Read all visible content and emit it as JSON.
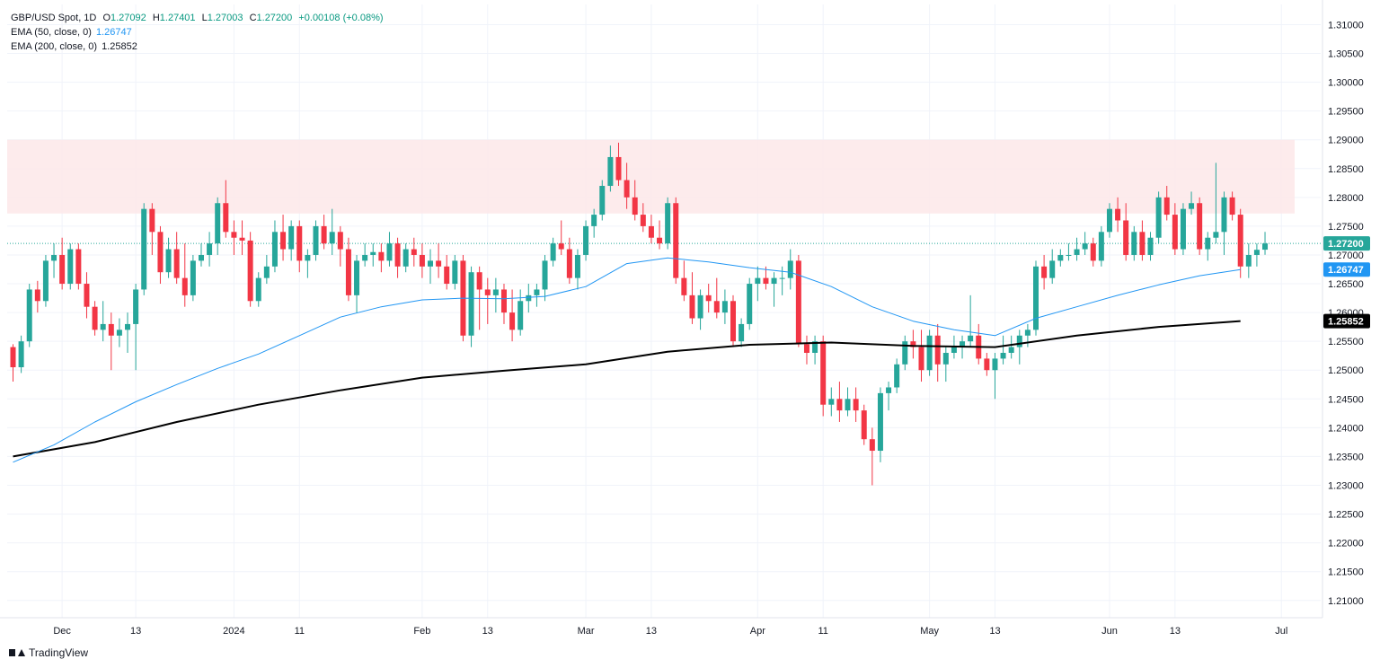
{
  "legend": {
    "symbol": "GBP/USD Spot, 1D",
    "o_label": "O",
    "o": "1.27092",
    "h_label": "H",
    "h": "1.27401",
    "l_label": "L",
    "l": "1.27003",
    "c_label": "C",
    "c": "1.27200",
    "change": "+0.00108 (+0.08%)",
    "ema50_label": "EMA (50, close, 0)",
    "ema50": "1.26747",
    "ema200_label": "EMA (200, close, 0)",
    "ema200": "1.25852"
  },
  "branding": {
    "name": "TradingView"
  },
  "colors": {
    "up": "#26a69a",
    "down": "#f23645",
    "ema50": "#2196f3",
    "ema200": "#000000",
    "zone": "#fde7e9"
  },
  "chart_data": {
    "type": "candlestick",
    "title": "GBP/USD Spot, 1D",
    "y_range": [
      1.207,
      1.3135
    ],
    "y_ticks": [
      "1.31000",
      "1.30500",
      "1.30000",
      "1.29500",
      "1.29000",
      "1.28500",
      "1.28000",
      "1.27500",
      "1.27000",
      "1.26500",
      "1.26000",
      "1.25500",
      "1.25000",
      "1.24500",
      "1.24000",
      "1.23500",
      "1.23000",
      "1.22500",
      "1.22000",
      "1.21500",
      "1.21000"
    ],
    "x_ticks": [
      {
        "label": "Dec",
        "bar": 6
      },
      {
        "label": "13",
        "bar": 15
      },
      {
        "label": "2024",
        "bar": 27
      },
      {
        "label": "11",
        "bar": 35
      },
      {
        "label": "Feb",
        "bar": 50
      },
      {
        "label": "13",
        "bar": 58
      },
      {
        "label": "Mar",
        "bar": 70
      },
      {
        "label": "13",
        "bar": 78
      },
      {
        "label": "Apr",
        "bar": 91
      },
      {
        "label": "11",
        "bar": 99
      },
      {
        "label": "May",
        "bar": 112
      },
      {
        "label": "13",
        "bar": 120
      },
      {
        "label": "Jun",
        "bar": 134
      },
      {
        "label": "13",
        "bar": 142
      },
      {
        "label": "Jul",
        "bar": 155
      }
    ],
    "resistance_zone": [
      1.2772,
      1.29
    ],
    "current_price": "1.27200",
    "ema50_value": "1.26747",
    "ema200_value": "1.25852",
    "candles": [
      [
        1.254,
        1.2545,
        1.248,
        1.2505
      ],
      [
        1.2505,
        1.256,
        1.2495,
        1.255
      ],
      [
        1.255,
        1.265,
        1.254,
        1.264
      ],
      [
        1.264,
        1.2655,
        1.26,
        1.262
      ],
      [
        1.262,
        1.27,
        1.261,
        1.269
      ],
      [
        1.269,
        1.272,
        1.266,
        1.27
      ],
      [
        1.27,
        1.273,
        1.264,
        1.265
      ],
      [
        1.265,
        1.272,
        1.264,
        1.271
      ],
      [
        1.271,
        1.272,
        1.264,
        1.265
      ],
      [
        1.265,
        1.267,
        1.259,
        1.261
      ],
      [
        1.261,
        1.262,
        1.256,
        1.257
      ],
      [
        1.257,
        1.262,
        1.255,
        1.258
      ],
      [
        1.258,
        1.26,
        1.25,
        1.256
      ],
      [
        1.256,
        1.259,
        1.254,
        1.257
      ],
      [
        1.257,
        1.26,
        1.253,
        1.258
      ],
      [
        1.258,
        1.265,
        1.25,
        1.264
      ],
      [
        1.264,
        1.279,
        1.263,
        1.278
      ],
      [
        1.278,
        1.279,
        1.27,
        1.274
      ],
      [
        1.274,
        1.275,
        1.265,
        1.267
      ],
      [
        1.267,
        1.273,
        1.266,
        1.271
      ],
      [
        1.271,
        1.274,
        1.265,
        1.266
      ],
      [
        1.266,
        1.272,
        1.261,
        1.263
      ],
      [
        1.263,
        1.27,
        1.262,
        1.269
      ],
      [
        1.269,
        1.272,
        1.268,
        1.27
      ],
      [
        1.27,
        1.274,
        1.268,
        1.272
      ],
      [
        1.272,
        1.28,
        1.27,
        1.279
      ],
      [
        1.279,
        1.283,
        1.273,
        1.274
      ],
      [
        1.274,
        1.276,
        1.27,
        1.273
      ],
      [
        1.273,
        1.276,
        1.27,
        1.2725
      ],
      [
        1.2725,
        1.274,
        1.261,
        1.262
      ],
      [
        1.262,
        1.267,
        1.261,
        1.266
      ],
      [
        1.266,
        1.27,
        1.265,
        1.268
      ],
      [
        1.268,
        1.276,
        1.267,
        1.274
      ],
      [
        1.274,
        1.277,
        1.269,
        1.271
      ],
      [
        1.271,
        1.276,
        1.269,
        1.275
      ],
      [
        1.275,
        1.276,
        1.267,
        1.269
      ],
      [
        1.269,
        1.271,
        1.266,
        1.27
      ],
      [
        1.27,
        1.276,
        1.269,
        1.275
      ],
      [
        1.275,
        1.277,
        1.271,
        1.272
      ],
      [
        1.272,
        1.278,
        1.27,
        1.274
      ],
      [
        1.274,
        1.275,
        1.268,
        1.271
      ],
      [
        1.271,
        1.273,
        1.262,
        1.263
      ],
      [
        1.263,
        1.27,
        1.26,
        1.269
      ],
      [
        1.269,
        1.272,
        1.268,
        1.27
      ],
      [
        1.27,
        1.272,
        1.268,
        1.2705
      ],
      [
        1.2705,
        1.272,
        1.267,
        1.269
      ],
      [
        1.269,
        1.274,
        1.268,
        1.272
      ],
      [
        1.272,
        1.273,
        1.266,
        1.268
      ],
      [
        1.268,
        1.272,
        1.267,
        1.271
      ],
      [
        1.271,
        1.273,
        1.268,
        1.27
      ],
      [
        1.27,
        1.272,
        1.266,
        1.268
      ],
      [
        1.268,
        1.271,
        1.265,
        1.269
      ],
      [
        1.269,
        1.272,
        1.266,
        1.268
      ],
      [
        1.268,
        1.27,
        1.264,
        1.265
      ],
      [
        1.265,
        1.27,
        1.264,
        1.269
      ],
      [
        1.269,
        1.27,
        1.255,
        1.256
      ],
      [
        1.256,
        1.268,
        1.254,
        1.267
      ],
      [
        1.267,
        1.268,
        1.257,
        1.264
      ],
      [
        1.264,
        1.266,
        1.258,
        1.263
      ],
      [
        1.263,
        1.266,
        1.26,
        1.264
      ],
      [
        1.264,
        1.265,
        1.258,
        1.26
      ],
      [
        1.26,
        1.264,
        1.255,
        1.257
      ],
      [
        1.257,
        1.264,
        1.256,
        1.262
      ],
      [
        1.262,
        1.265,
        1.26,
        1.263
      ],
      [
        1.263,
        1.265,
        1.261,
        1.264
      ],
      [
        1.264,
        1.27,
        1.262,
        1.269
      ],
      [
        1.269,
        1.273,
        1.268,
        1.272
      ],
      [
        1.272,
        1.276,
        1.27,
        1.271
      ],
      [
        1.271,
        1.273,
        1.265,
        1.266
      ],
      [
        1.266,
        1.271,
        1.264,
        1.27
      ],
      [
        1.27,
        1.276,
        1.269,
        1.275
      ],
      [
        1.275,
        1.278,
        1.273,
        1.277
      ],
      [
        1.277,
        1.283,
        1.276,
        1.282
      ],
      [
        1.282,
        1.289,
        1.281,
        1.287
      ],
      [
        1.287,
        1.2895,
        1.282,
        1.283
      ],
      [
        1.283,
        1.286,
        1.278,
        1.28
      ],
      [
        1.28,
        1.283,
        1.276,
        1.277
      ],
      [
        1.277,
        1.279,
        1.274,
        1.275
      ],
      [
        1.275,
        1.277,
        1.272,
        1.273
      ],
      [
        1.273,
        1.276,
        1.271,
        1.272
      ],
      [
        1.272,
        1.28,
        1.271,
        1.279
      ],
      [
        1.279,
        1.28,
        1.265,
        1.266
      ],
      [
        1.266,
        1.269,
        1.262,
        1.263
      ],
      [
        1.263,
        1.267,
        1.258,
        1.259
      ],
      [
        1.259,
        1.264,
        1.257,
        1.263
      ],
      [
        1.263,
        1.265,
        1.26,
        1.262
      ],
      [
        1.262,
        1.266,
        1.259,
        1.26
      ],
      [
        1.26,
        1.264,
        1.258,
        1.262
      ],
      [
        1.262,
        1.263,
        1.254,
        1.255
      ],
      [
        1.255,
        1.259,
        1.254,
        1.258
      ],
      [
        1.258,
        1.266,
        1.257,
        1.265
      ],
      [
        1.265,
        1.268,
        1.262,
        1.266
      ],
      [
        1.266,
        1.268,
        1.264,
        1.265
      ],
      [
        1.265,
        1.267,
        1.261,
        1.266
      ],
      [
        1.266,
        1.268,
        1.263,
        1.266
      ],
      [
        1.266,
        1.271,
        1.264,
        1.269
      ],
      [
        1.269,
        1.27,
        1.254,
        1.2545
      ],
      [
        1.2545,
        1.256,
        1.251,
        1.253
      ],
      [
        1.253,
        1.256,
        1.251,
        1.255
      ],
      [
        1.255,
        1.256,
        1.242,
        1.244
      ],
      [
        1.244,
        1.247,
        1.242,
        1.245
      ],
      [
        1.245,
        1.248,
        1.241,
        1.243
      ],
      [
        1.243,
        1.247,
        1.242,
        1.245
      ],
      [
        1.245,
        1.247,
        1.241,
        1.243
      ],
      [
        1.243,
        1.244,
        1.237,
        1.238
      ],
      [
        1.238,
        1.24,
        1.23,
        1.236
      ],
      [
        1.236,
        1.247,
        1.234,
        1.246
      ],
      [
        1.246,
        1.248,
        1.243,
        1.247
      ],
      [
        1.247,
        1.252,
        1.246,
        1.251
      ],
      [
        1.251,
        1.256,
        1.25,
        1.255
      ],
      [
        1.255,
        1.257,
        1.252,
        1.254
      ],
      [
        1.254,
        1.257,
        1.248,
        1.25
      ],
      [
        1.25,
        1.257,
        1.249,
        1.256
      ],
      [
        1.256,
        1.258,
        1.248,
        1.251
      ],
      [
        1.251,
        1.254,
        1.248,
        1.253
      ],
      [
        1.253,
        1.256,
        1.252,
        1.254
      ],
      [
        1.254,
        1.256,
        1.252,
        1.255
      ],
      [
        1.255,
        1.263,
        1.254,
        1.256
      ],
      [
        1.256,
        1.258,
        1.251,
        1.252
      ],
      [
        1.252,
        1.253,
        1.249,
        1.25
      ],
      [
        1.25,
        1.253,
        1.245,
        1.252
      ],
      [
        1.252,
        1.256,
        1.251,
        1.253
      ],
      [
        1.253,
        1.256,
        1.252,
        1.254
      ],
      [
        1.254,
        1.257,
        1.251,
        1.256
      ],
      [
        1.256,
        1.258,
        1.254,
        1.257
      ],
      [
        1.257,
        1.269,
        1.256,
        1.268
      ],
      [
        1.268,
        1.27,
        1.264,
        1.266
      ],
      [
        1.266,
        1.271,
        1.265,
        1.269
      ],
      [
        1.269,
        1.271,
        1.268,
        1.27
      ],
      [
        1.27,
        1.272,
        1.269,
        1.27
      ],
      [
        1.27,
        1.273,
        1.269,
        1.271
      ],
      [
        1.271,
        1.274,
        1.27,
        1.272
      ],
      [
        1.272,
        1.273,
        1.268,
        1.269
      ],
      [
        1.269,
        1.275,
        1.268,
        1.274
      ],
      [
        1.274,
        1.279,
        1.273,
        1.278
      ],
      [
        1.278,
        1.28,
        1.274,
        1.276
      ],
      [
        1.276,
        1.279,
        1.269,
        1.27
      ],
      [
        1.27,
        1.275,
        1.269,
        1.274
      ],
      [
        1.274,
        1.276,
        1.269,
        1.27
      ],
      [
        1.27,
        1.274,
        1.269,
        1.273
      ],
      [
        1.273,
        1.281,
        1.272,
        1.28
      ],
      [
        1.28,
        1.282,
        1.276,
        1.277
      ],
      [
        1.277,
        1.279,
        1.27,
        1.271
      ],
      [
        1.271,
        1.279,
        1.27,
        1.278
      ],
      [
        1.278,
        1.281,
        1.277,
        1.279
      ],
      [
        1.279,
        1.28,
        1.27,
        1.271
      ],
      [
        1.271,
        1.274,
        1.269,
        1.273
      ],
      [
        1.273,
        1.286,
        1.272,
        1.274
      ],
      [
        1.274,
        1.281,
        1.27,
        1.28
      ],
      [
        1.28,
        1.281,
        1.276,
        1.277
      ],
      [
        1.277,
        1.278,
        1.266,
        1.268
      ],
      [
        1.268,
        1.272,
        1.266,
        1.27
      ],
      [
        1.27,
        1.272,
        1.268,
        1.2709
      ],
      [
        1.27092,
        1.27401,
        1.27003,
        1.272
      ]
    ],
    "ema50": [
      [
        0,
        1.234
      ],
      [
        5,
        1.237
      ],
      [
        10,
        1.241
      ],
      [
        15,
        1.2445
      ],
      [
        20,
        1.2475
      ],
      [
        25,
        1.2503
      ],
      [
        30,
        1.2528
      ],
      [
        35,
        1.256
      ],
      [
        40,
        1.2592
      ],
      [
        45,
        1.261
      ],
      [
        50,
        1.2622
      ],
      [
        55,
        1.2625
      ],
      [
        60,
        1.2624
      ],
      [
        65,
        1.2628
      ],
      [
        70,
        1.2645
      ],
      [
        75,
        1.2685
      ],
      [
        80,
        1.2695
      ],
      [
        85,
        1.2688
      ],
      [
        90,
        1.2678
      ],
      [
        95,
        1.267
      ],
      [
        100,
        1.2645
      ],
      [
        105,
        1.261
      ],
      [
        110,
        1.2585
      ],
      [
        115,
        1.257
      ],
      [
        120,
        1.256
      ],
      [
        125,
        1.259
      ],
      [
        130,
        1.261
      ],
      [
        135,
        1.263
      ],
      [
        140,
        1.2648
      ],
      [
        145,
        1.2664
      ],
      [
        150,
        1.26747
      ]
    ],
    "ema200": [
      [
        0,
        1.235
      ],
      [
        10,
        1.2375
      ],
      [
        20,
        1.241
      ],
      [
        30,
        1.244
      ],
      [
        40,
        1.2465
      ],
      [
        50,
        1.2487
      ],
      [
        60,
        1.2499
      ],
      [
        70,
        1.251
      ],
      [
        80,
        1.2532
      ],
      [
        90,
        1.2544
      ],
      [
        100,
        1.2548
      ],
      [
        110,
        1.2542
      ],
      [
        120,
        1.254
      ],
      [
        130,
        1.256
      ],
      [
        140,
        1.2575
      ],
      [
        150,
        1.25852
      ]
    ]
  }
}
